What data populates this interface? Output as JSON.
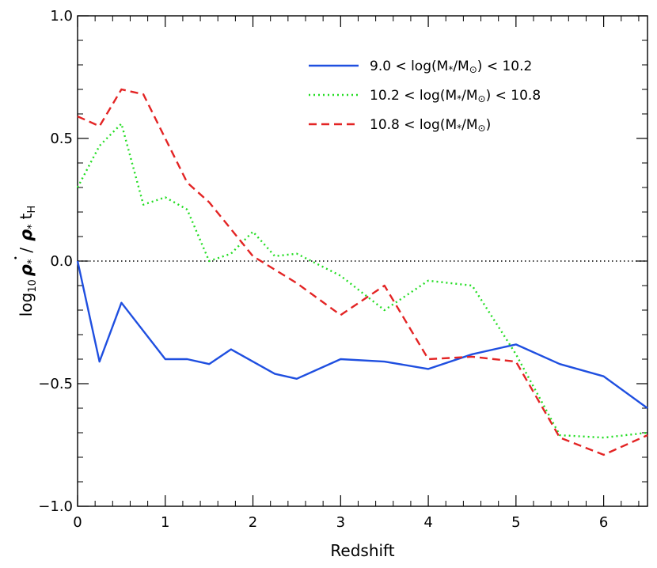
{
  "chart_data": {
    "type": "line",
    "xlabel": "Redshift",
    "ylabel": {
      "log": "log",
      "log_sub": "10",
      "rho": "ρ",
      "star": "*",
      "slash": "/",
      "dot": "•",
      "t": "t",
      "t_sub": "H"
    },
    "xlim": [
      0,
      6.5
    ],
    "ylim": [
      -1.0,
      1.0
    ],
    "x_ticks": [
      0,
      1,
      2,
      3,
      4,
      5,
      6
    ],
    "x_tick_labels": [
      "0",
      "1",
      "2",
      "3",
      "4",
      "5",
      "6"
    ],
    "y_ticks": [
      -1.0,
      -0.5,
      0.0,
      0.5,
      1.0
    ],
    "y_tick_labels": [
      "−1.0",
      "−0.5",
      "0.0",
      "0.5",
      "1.0"
    ],
    "reference_line": {
      "y": 0.0,
      "style": "dotted",
      "color": "#000000"
    },
    "legend_position": "top-right",
    "series": [
      {
        "legend": {
          "pre": "9.0 < log(M",
          "sub": "*",
          "mid": "/M",
          "sub2": "⊙",
          "post": ") < 10.2"
        },
        "color": "#1f4fe0",
        "style": "solid",
        "x": [
          0,
          0.25,
          0.5,
          1.0,
          1.25,
          1.5,
          1.75,
          2.0,
          2.25,
          2.5,
          3.0,
          3.5,
          4.0,
          4.5,
          5.0,
          5.5,
          6.0,
          6.5
        ],
        "y": [
          0.0,
          -0.41,
          -0.17,
          -0.4,
          -0.4,
          -0.42,
          -0.36,
          -0.41,
          -0.46,
          -0.48,
          -0.4,
          -0.41,
          -0.44,
          -0.38,
          -0.34,
          -0.42,
          -0.47,
          -0.6
        ]
      },
      {
        "legend": {
          "pre": "10.2 < log(M",
          "sub": "*",
          "mid": "/M",
          "sub2": "⊙",
          "post": ") < 10.8"
        },
        "color": "#22dd22",
        "style": "dotted",
        "x": [
          0,
          0.25,
          0.5,
          0.75,
          1.0,
          1.25,
          1.5,
          1.75,
          2.0,
          2.25,
          2.5,
          3.0,
          3.5,
          4.0,
          4.5,
          5.0,
          5.5,
          6.0,
          6.5
        ],
        "y": [
          0.3,
          0.47,
          0.56,
          0.23,
          0.26,
          0.21,
          0.0,
          0.03,
          0.12,
          0.02,
          0.03,
          -0.06,
          -0.2,
          -0.08,
          -0.1,
          -0.38,
          -0.71,
          -0.72,
          -0.7
        ]
      },
      {
        "legend": {
          "pre": "10.8 < log(M",
          "sub": "*",
          "mid": "/M",
          "sub2": "⊙",
          "post": ")"
        },
        "color": "#e32424",
        "style": "dashed",
        "x": [
          0,
          0.25,
          0.5,
          0.75,
          1.0,
          1.25,
          1.5,
          2.0,
          2.5,
          3.0,
          3.5,
          4.0,
          4.5,
          5.0,
          5.5,
          6.0,
          6.5
        ],
        "y": [
          0.59,
          0.55,
          0.7,
          0.68,
          0.5,
          0.32,
          0.24,
          0.02,
          -0.09,
          -0.22,
          -0.1,
          -0.4,
          -0.39,
          -0.41,
          -0.72,
          -0.79,
          -0.71
        ]
      }
    ]
  }
}
